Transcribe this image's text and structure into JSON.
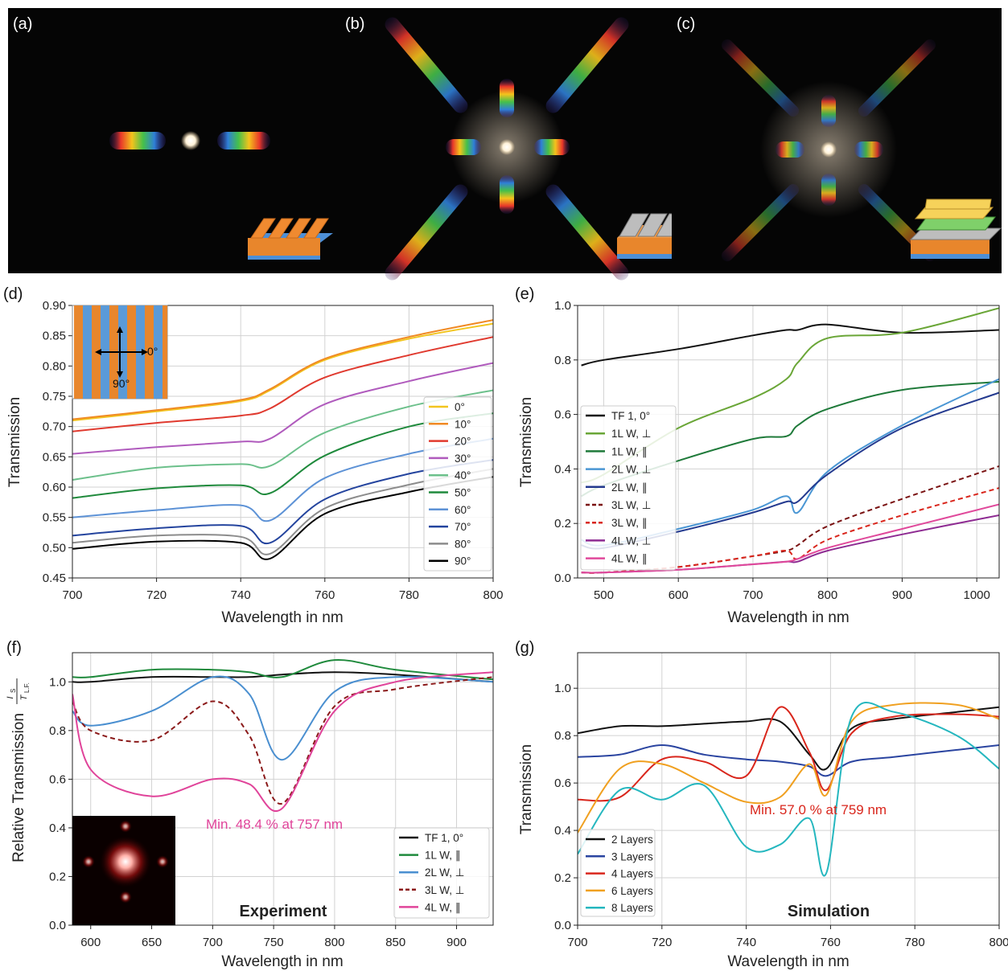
{
  "photos": [
    {
      "label": "(a)"
    },
    {
      "label": "(b)"
    },
    {
      "label": "(c)"
    }
  ],
  "chart_data": [
    {
      "panel": "(d)",
      "type": "line",
      "xlabel": "Wavelength in nm",
      "ylabel": "Transmission",
      "xlim": [
        700,
        800
      ],
      "ylim": [
        0.45,
        0.9
      ],
      "xticks": [
        "700",
        "720",
        "740",
        "760",
        "780",
        "800"
      ],
      "yticks": [
        "0.45",
        "0.50",
        "0.55",
        "0.60",
        "0.65",
        "0.70",
        "0.75",
        "0.80",
        "0.85",
        "0.90"
      ],
      "grid": true,
      "legend_position": "right",
      "inset_labels": [
        "0°",
        "90°"
      ],
      "dip_center": 747,
      "x": [
        700,
        720,
        740,
        747,
        760,
        780,
        800
      ],
      "series": [
        {
          "name": "0°",
          "color": "#f2c51f",
          "values": [
            0.71,
            0.725,
            0.742,
            0.76,
            0.81,
            0.845,
            0.87
          ]
        },
        {
          "name": "10°",
          "color": "#f08a24",
          "values": [
            0.712,
            0.727,
            0.744,
            0.762,
            0.812,
            0.848,
            0.876
          ]
        },
        {
          "name": "20°",
          "color": "#e03a2f",
          "values": [
            0.692,
            0.706,
            0.718,
            0.73,
            0.781,
            0.818,
            0.848
          ]
        },
        {
          "name": "30°",
          "color": "#b05bbd",
          "values": [
            0.655,
            0.666,
            0.675,
            0.68,
            0.737,
            0.775,
            0.805
          ]
        },
        {
          "name": "40°",
          "color": "#6cc08b",
          "values": [
            0.612,
            0.632,
            0.638,
            0.635,
            0.69,
            0.733,
            0.76
          ]
        },
        {
          "name": "50°",
          "color": "#1f8a3c",
          "values": [
            0.582,
            0.598,
            0.603,
            0.59,
            0.652,
            0.7,
            0.722
          ]
        },
        {
          "name": "60°",
          "color": "#5d92d6",
          "values": [
            0.55,
            0.562,
            0.57,
            0.545,
            0.615,
            0.655,
            0.68
          ]
        },
        {
          "name": "70°",
          "color": "#24449e",
          "values": [
            0.52,
            0.532,
            0.536,
            0.508,
            0.58,
            0.622,
            0.645
          ]
        },
        {
          "name": "80°",
          "color": "#8c8c8c",
          "values": [
            0.508,
            0.52,
            0.518,
            0.49,
            0.565,
            0.604,
            0.63
          ]
        },
        {
          "name": "90°",
          "color": "#000000",
          "values": [
            0.498,
            0.51,
            0.508,
            0.482,
            0.556,
            0.592,
            0.617
          ]
        }
      ]
    },
    {
      "panel": "(e)",
      "type": "line",
      "xlabel": "Wavelength in nm",
      "ylabel": "Transmission",
      "xlim": [
        465,
        1030
      ],
      "ylim": [
        0.0,
        1.0
      ],
      "xticks": [
        "500",
        "600",
        "700",
        "800",
        "900",
        "1000"
      ],
      "yticks": [
        "0.0",
        "0.2",
        "0.4",
        "0.6",
        "0.8",
        "1.0"
      ],
      "grid": true,
      "legend_position": "left",
      "x": [
        470,
        500,
        600,
        700,
        745,
        760,
        800,
        900,
        1030
      ],
      "series": [
        {
          "name": "TF 1,  0°",
          "color": "#111111",
          "dash": false,
          "values": [
            0.78,
            0.8,
            0.84,
            0.89,
            0.91,
            0.91,
            0.93,
            0.9,
            0.91
          ]
        },
        {
          "name": "1L W,   ⊥",
          "color": "#6aa637",
          "dash": false,
          "values": [
            0.35,
            0.38,
            0.55,
            0.66,
            0.73,
            0.79,
            0.88,
            0.9,
            0.99
          ]
        },
        {
          "name": "1L W,   ∥",
          "color": "#1f7a3a",
          "dash": false,
          "values": [
            0.3,
            0.34,
            0.43,
            0.51,
            0.52,
            0.56,
            0.62,
            0.69,
            0.72
          ]
        },
        {
          "name": "2L W,   ⊥",
          "color": "#4a96d4",
          "dash": false,
          "values": [
            0.14,
            0.12,
            0.18,
            0.25,
            0.3,
            0.24,
            0.39,
            0.56,
            0.73
          ]
        },
        {
          "name": "2L W,   ∥",
          "color": "#243a8f",
          "dash": false,
          "values": [
            0.12,
            0.11,
            0.17,
            0.24,
            0.28,
            0.28,
            0.38,
            0.55,
            0.68
          ]
        },
        {
          "name": "3L W,   ⊥",
          "color": "#7a1212",
          "dash": true,
          "values": [
            0.02,
            0.02,
            0.04,
            0.08,
            0.1,
            0.12,
            0.19,
            0.29,
            0.41
          ]
        },
        {
          "name": "3L W,   ∥",
          "color": "#d9261c",
          "dash": true,
          "values": [
            0.02,
            0.02,
            0.04,
            0.08,
            0.1,
            0.07,
            0.14,
            0.23,
            0.33
          ]
        },
        {
          "name": "4L W,   ⊥",
          "color": "#8e2b92",
          "dash": false,
          "values": [
            0.02,
            0.02,
            0.03,
            0.05,
            0.06,
            0.06,
            0.1,
            0.16,
            0.23
          ]
        },
        {
          "name": "4L W,   ∥",
          "color": "#e0499b",
          "dash": false,
          "values": [
            0.02,
            0.02,
            0.03,
            0.05,
            0.06,
            0.07,
            0.11,
            0.18,
            0.27
          ]
        }
      ]
    },
    {
      "panel": "(f)",
      "type": "line",
      "xlabel": "Wavelength in nm",
      "ylabel": "Relative Transmission",
      "ylabel_fraction_num": "I",
      "ylabel_fraction_num_sub": "S",
      "ylabel_fraction_den": "T",
      "ylabel_fraction_den_sub": "L.F.",
      "xlim": [
        585,
        930
      ],
      "ylim": [
        0.0,
        1.12
      ],
      "xticks": [
        "600",
        "650",
        "700",
        "750",
        "800",
        "850",
        "900"
      ],
      "yticks": [
        "0.0",
        "0.2",
        "0.4",
        "0.6",
        "0.8",
        "1.0"
      ],
      "grid": true,
      "legend_position": "bottom-right",
      "annotation": "Min. 48.4 % at 757 nm",
      "annotation_color": "#e0449a",
      "corner_text": "Experiment",
      "x": [
        585,
        600,
        650,
        700,
        730,
        757,
        800,
        850,
        930
      ],
      "series": [
        {
          "name": "TF 1,  0°",
          "color": "#111111",
          "dash": false,
          "values": [
            1.0,
            1.0,
            1.02,
            1.02,
            1.02,
            1.03,
            1.04,
            1.03,
            1.0
          ]
        },
        {
          "name": "1L W,   ∥",
          "color": "#1f8a3c",
          "dash": false,
          "values": [
            1.02,
            1.02,
            1.05,
            1.05,
            1.04,
            1.02,
            1.09,
            1.05,
            1.01
          ]
        },
        {
          "name": "2L W,   ⊥",
          "color": "#4a8fd0",
          "dash": false,
          "values": [
            0.88,
            0.82,
            0.88,
            1.02,
            0.95,
            0.68,
            0.96,
            1.02,
            1.0
          ]
        },
        {
          "name": "3L W,   ⊥",
          "color": "#8b1a1a",
          "dash": true,
          "values": [
            0.92,
            0.8,
            0.76,
            0.92,
            0.78,
            0.5,
            0.9,
            0.97,
            1.02
          ]
        },
        {
          "name": "4L W,   ∥",
          "color": "#e0449a",
          "dash": false,
          "values": [
            0.95,
            0.64,
            0.53,
            0.6,
            0.58,
            0.48,
            0.88,
            1.0,
            1.04
          ]
        }
      ]
    },
    {
      "panel": "(g)",
      "type": "line",
      "xlabel": "Wavelength in nm",
      "ylabel": "Transmission",
      "xlim": [
        700,
        800
      ],
      "ylim": [
        0.0,
        1.15
      ],
      "xticks": [
        "700",
        "720",
        "740",
        "760",
        "780",
        "800"
      ],
      "yticks": [
        "0.0",
        "0.2",
        "0.4",
        "0.6",
        "0.8",
        "1.0"
      ],
      "grid": true,
      "legend_position": "bottom-left",
      "annotation": "Min. 57.0 % at 759 nm",
      "annotation_color": "#d9261c",
      "corner_text": "Simulation",
      "x": [
        700,
        710,
        720,
        730,
        740,
        748,
        755,
        759,
        765,
        775,
        790,
        800
      ],
      "series": [
        {
          "name": "2 Layers",
          "color": "#111111",
          "values": [
            0.81,
            0.84,
            0.84,
            0.85,
            0.86,
            0.86,
            0.72,
            0.66,
            0.83,
            0.87,
            0.9,
            0.92
          ]
        },
        {
          "name": "3 Layers",
          "color": "#2a44a0",
          "values": [
            0.71,
            0.72,
            0.76,
            0.72,
            0.7,
            0.69,
            0.67,
            0.63,
            0.69,
            0.71,
            0.74,
            0.76
          ]
        },
        {
          "name": "4 Layers",
          "color": "#d9261c",
          "values": [
            0.53,
            0.54,
            0.7,
            0.69,
            0.63,
            0.92,
            0.73,
            0.57,
            0.81,
            0.88,
            0.89,
            0.88
          ]
        },
        {
          "name": "6 Layers",
          "color": "#f0a020",
          "values": [
            0.39,
            0.66,
            0.68,
            0.6,
            0.52,
            0.54,
            0.68,
            0.55,
            0.86,
            0.93,
            0.93,
            0.87
          ]
        },
        {
          "name": "8 Layers",
          "color": "#25b7bf",
          "values": [
            0.3,
            0.57,
            0.53,
            0.59,
            0.33,
            0.34,
            0.45,
            0.22,
            0.88,
            0.9,
            0.8,
            0.66
          ]
        }
      ]
    }
  ]
}
